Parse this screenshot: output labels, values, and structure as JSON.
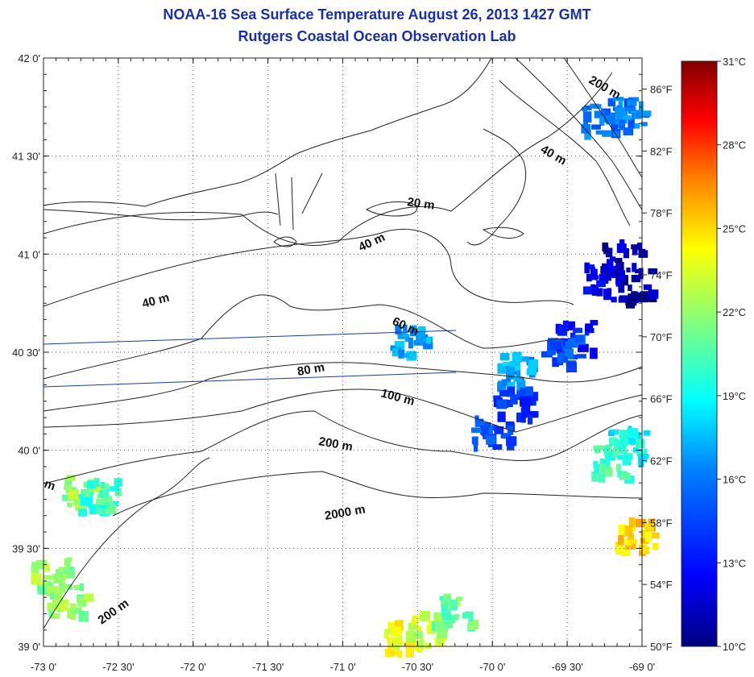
{
  "title": "NOAA-16 Sea Surface Temperature August 26, 2013 1427 GMT",
  "subtitle": "Rutgers Coastal Ocean Observation Lab",
  "lat_ticks": [
    "42 0'",
    "41 30'",
    "41 0'",
    "40 30'",
    "40 0'",
    "39 30'",
    "39 0'"
  ],
  "lon_ticks": [
    "-73 0'",
    "-72 30'",
    "-72 0'",
    "-71 30'",
    "-71 0'",
    "-70 30'",
    "-70 0'",
    "-69 30'",
    "-69 0'"
  ],
  "fahrenheit_ticks": [
    "86°F",
    "82°F",
    "78°F",
    "74°F",
    "70°F",
    "66°F",
    "62°F",
    "58°F",
    "54°F",
    "50°F"
  ],
  "celsius_ticks": [
    "31°C",
    "28°C",
    "25°C",
    "22°C",
    "19°C",
    "16°C",
    "13°C",
    "10°C"
  ],
  "contour_labels": [
    "200 m",
    "40 m",
    "20 m",
    "40 m",
    "40 m",
    "60 m",
    "80 m",
    "100 m",
    "200 m",
    "2000 m",
    "200 m",
    "m"
  ],
  "colorbar": {
    "min_c": 10,
    "max_c": 31,
    "colors": [
      "#00007f",
      "#0000ff",
      "#007fff",
      "#00ffff",
      "#7fff7f",
      "#ffff00",
      "#ff7f00",
      "#ff0000",
      "#7f0000"
    ]
  },
  "map_extent": {
    "lon": [
      -73,
      -69
    ],
    "lat": [
      39,
      42
    ]
  },
  "sst_patches": [
    {
      "lon": -69.28,
      "lat": 41.7,
      "temp_c": 16
    },
    {
      "lon": -69.12,
      "lat": 41.72,
      "temp_c": 16
    },
    {
      "lon": -69.15,
      "lat": 41.0,
      "temp_c": 11
    },
    {
      "lon": -69.3,
      "lat": 40.9,
      "temp_c": 12
    },
    {
      "lon": -69.08,
      "lat": 40.85,
      "temp_c": 11
    },
    {
      "lon": -69.45,
      "lat": 40.6,
      "temp_c": 13
    },
    {
      "lon": -69.55,
      "lat": 40.52,
      "temp_c": 15
    },
    {
      "lon": -69.85,
      "lat": 40.42,
      "temp_c": 17
    },
    {
      "lon": -69.88,
      "lat": 40.25,
      "temp_c": 14
    },
    {
      "lon": -70.02,
      "lat": 40.1,
      "temp_c": 15
    },
    {
      "lon": -69.22,
      "lat": 39.95,
      "temp_c": 20
    },
    {
      "lon": -69.12,
      "lat": 40.05,
      "temp_c": 19
    },
    {
      "lon": -70.56,
      "lat": 40.57,
      "temp_c": 17
    },
    {
      "lon": -72.75,
      "lat": 39.8,
      "temp_c": 22
    },
    {
      "lon": -72.65,
      "lat": 39.78,
      "temp_c": 20
    },
    {
      "lon": -72.96,
      "lat": 39.38,
      "temp_c": 22
    },
    {
      "lon": -72.85,
      "lat": 39.25,
      "temp_c": 22
    },
    {
      "lon": -70.63,
      "lat": 39.06,
      "temp_c": 24
    },
    {
      "lon": -70.45,
      "lat": 39.1,
      "temp_c": 23
    },
    {
      "lon": -70.28,
      "lat": 39.2,
      "temp_c": 21
    },
    {
      "lon": -69.05,
      "lat": 39.58,
      "temp_c": 25
    }
  ]
}
